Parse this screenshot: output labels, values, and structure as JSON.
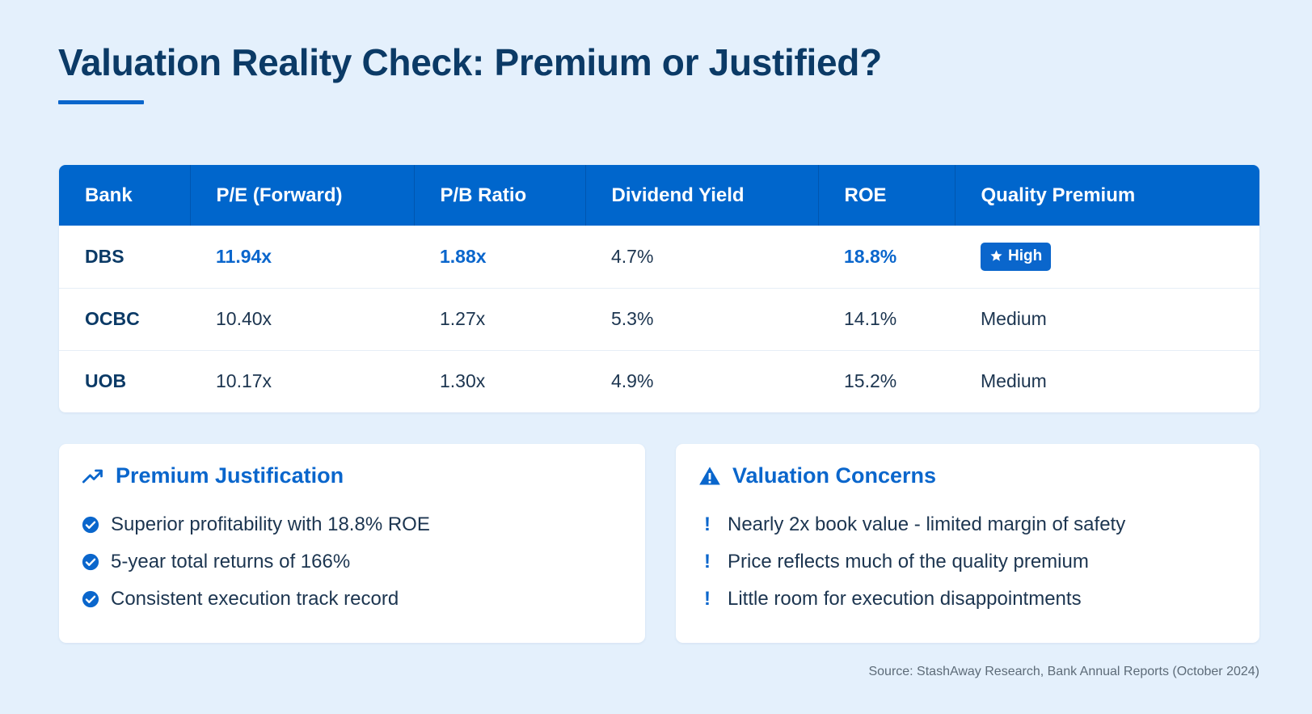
{
  "title": "Valuation Reality Check: Premium or Justified?",
  "colors": {
    "accent": "#0a66cc",
    "header_bg": "#0066cc",
    "page_bg": "#e4f0fc",
    "title": "#0b3a66"
  },
  "table": {
    "headers": [
      "Bank",
      "P/E (Forward)",
      "P/B Ratio",
      "Dividend Yield",
      "ROE",
      "Quality Premium"
    ],
    "rows": [
      {
        "bank": "DBS",
        "pe": "11.94x",
        "pb": "1.88x",
        "dividend": "4.7%",
        "roe": "18.8%",
        "premium": "High",
        "premium_icon": "star-icon"
      },
      {
        "bank": "OCBC",
        "pe": "10.40x",
        "pb": "1.27x",
        "dividend": "5.3%",
        "roe": "14.1%",
        "premium": "Medium"
      },
      {
        "bank": "UOB",
        "pe": "10.17x",
        "pb": "1.30x",
        "dividend": "4.9%",
        "roe": "15.2%",
        "premium": "Medium"
      }
    ]
  },
  "justification": {
    "title": "Premium Justification",
    "icon": "trending-up-icon",
    "items": [
      "Superior profitability with 18.8% ROE",
      "5-year total returns of 166%",
      "Consistent execution track record"
    ]
  },
  "concerns": {
    "title": "Valuation Concerns",
    "icon": "warning-icon",
    "marker": "!",
    "items": [
      "Nearly 2x book value - limited margin of safety",
      "Price reflects much of the quality premium",
      "Little room for execution disappointments"
    ]
  },
  "source": "Source: StashAway Research, Bank Annual Reports (October 2024)"
}
